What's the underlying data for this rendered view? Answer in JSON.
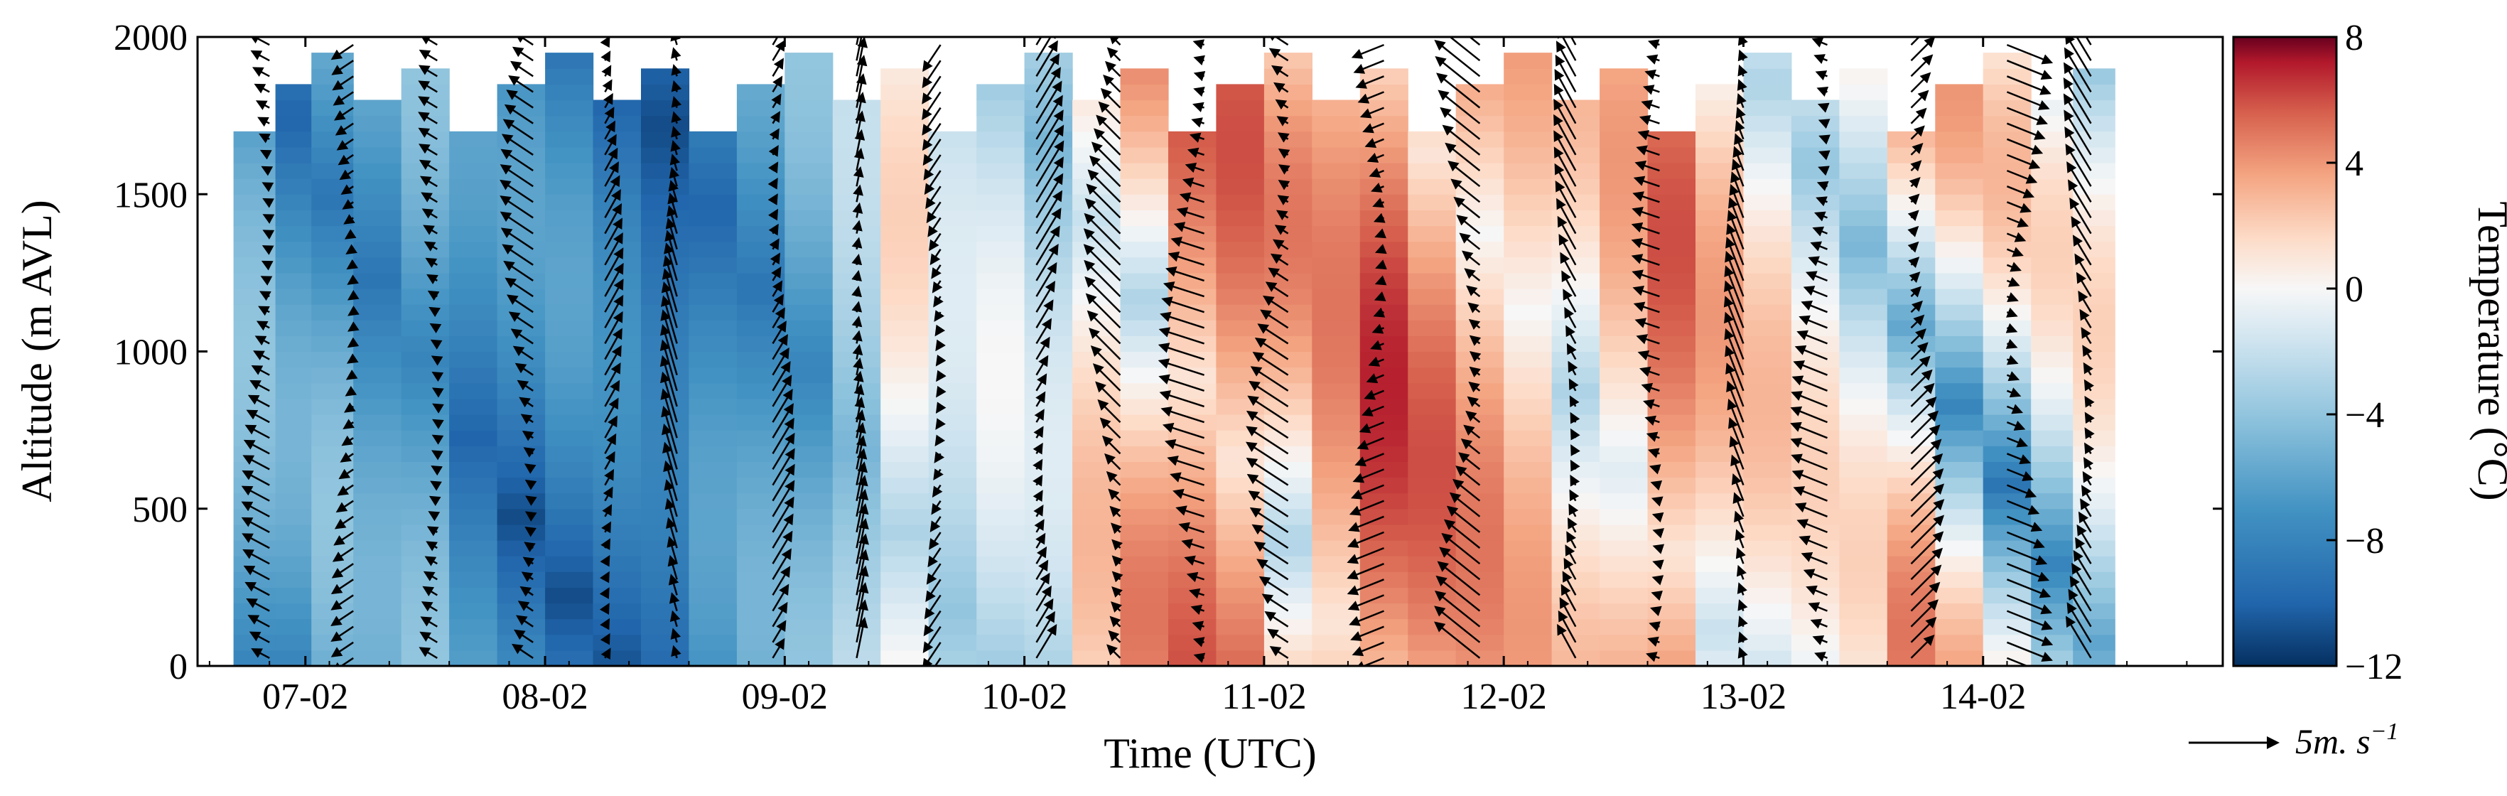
{
  "chart_data": {
    "type": "heatmap",
    "title": "",
    "xlabel": "Time (UTC)",
    "ylabel": "Altitude (m AVL)",
    "x_ticks": [
      "07-02",
      "08-02",
      "09-02",
      "10-02",
      "11-02",
      "12-02",
      "13-02",
      "14-02"
    ],
    "x_range_days": [
      6.55,
      15.0
    ],
    "y_ticks": [
      "0",
      "500",
      "1000",
      "1500",
      "2000"
    ],
    "y_range": [
      0,
      2000
    ],
    "colorbar": {
      "label": "Temperature (°C)",
      "ticks": [
        "8",
        "4",
        "0",
        "−4",
        "−8",
        "−12"
      ],
      "range": [
        -12,
        8
      ],
      "colormap": "RdBu_r"
    },
    "wind_scale_label": "5m. s",
    "wind_scale_exponent": "−1",
    "temperature_profiles": [
      {
        "day": 6.8,
        "tmin": -8,
        "tmax": -4
      },
      {
        "day": 6.95,
        "tmin": -10,
        "tmax": -5
      },
      {
        "day": 7.1,
        "tmin": -9,
        "tmax": -4
      },
      {
        "day": 7.3,
        "tmin": -9,
        "tmax": -5
      },
      {
        "day": 7.5,
        "tmin": -8,
        "tmax": -4
      },
      {
        "day": 7.7,
        "tmin": -10,
        "tmax": -6
      },
      {
        "day": 7.9,
        "tmin": -11,
        "tmax": -6
      },
      {
        "day": 8.1,
        "tmin": -11,
        "tmax": -6
      },
      {
        "day": 8.3,
        "tmin": -11,
        "tmax": -7
      },
      {
        "day": 8.5,
        "tmin": -11,
        "tmax": -8
      },
      {
        "day": 8.7,
        "tmin": -10,
        "tmax": -6
      },
      {
        "day": 8.9,
        "tmin": -9,
        "tmax": -5
      },
      {
        "day": 9.1,
        "tmin": -8,
        "tmax": -4
      },
      {
        "day": 9.3,
        "tmin": -5,
        "tmax": -2
      },
      {
        "day": 9.5,
        "tmin": -3,
        "tmax": 2
      },
      {
        "day": 9.7,
        "tmin": -4,
        "tmax": -1
      },
      {
        "day": 9.9,
        "tmin": -4,
        "tmax": 0
      },
      {
        "day": 10.1,
        "tmin": -5,
        "tmax": -1
      },
      {
        "day": 10.3,
        "tmin": -2,
        "tmax": 3
      },
      {
        "day": 10.5,
        "tmin": -3,
        "tmax": 5
      },
      {
        "day": 10.7,
        "tmin": 1,
        "tmax": 6
      },
      {
        "day": 10.9,
        "tmin": 1,
        "tmax": 6
      },
      {
        "day": 11.1,
        "tmin": -3,
        "tmax": 5
      },
      {
        "day": 11.3,
        "tmin": 1,
        "tmax": 5
      },
      {
        "day": 11.5,
        "tmin": 2,
        "tmax": 7
      },
      {
        "day": 11.7,
        "tmin": 1,
        "tmax": 6
      },
      {
        "day": 11.9,
        "tmin": 0,
        "tmax": 5
      },
      {
        "day": 12.1,
        "tmin": 0,
        "tmax": 4
      },
      {
        "day": 12.3,
        "tmin": -3,
        "tmax": 3
      },
      {
        "day": 12.5,
        "tmin": -1,
        "tmax": 4
      },
      {
        "day": 12.7,
        "tmin": 1,
        "tmax": 6
      },
      {
        "day": 12.9,
        "tmin": -2,
        "tmax": 4
      },
      {
        "day": 13.1,
        "tmin": -3,
        "tmax": 3
      },
      {
        "day": 13.3,
        "tmin": -4,
        "tmax": 2
      },
      {
        "day": 13.5,
        "tmin": -5,
        "tmax": 2
      },
      {
        "day": 13.7,
        "tmin": -6,
        "tmax": 5
      },
      {
        "day": 13.9,
        "tmin": -8,
        "tmax": 4
      },
      {
        "day": 14.1,
        "tmin": -9,
        "tmax": 3
      },
      {
        "day": 14.3,
        "tmin": -8,
        "tmax": 2
      },
      {
        "day": 14.45,
        "tmin": -6,
        "tmax": 2
      }
    ],
    "wind_profiles": [
      {
        "day": 6.85,
        "u": -1.5,
        "v": 0.8
      },
      {
        "day": 7.2,
        "u": -1.2,
        "v": -0.8
      },
      {
        "day": 7.55,
        "u": -1.0,
        "v": 0.6
      },
      {
        "day": 7.95,
        "u": -1.8,
        "v": 1.2
      },
      {
        "day": 8.25,
        "u": 1.0,
        "v": 1.8
      },
      {
        "day": 8.55,
        "u": -0.8,
        "v": 2.8
      },
      {
        "day": 8.95,
        "u": 1.2,
        "v": 2.0
      },
      {
        "day": 9.3,
        "u": 0.5,
        "v": 2.5
      },
      {
        "day": 9.65,
        "u": -1.0,
        "v": -1.5
      },
      {
        "day": 10.05,
        "u": 1.5,
        "v": 2.5
      },
      {
        "day": 10.4,
        "u": -2.0,
        "v": 2.0
      },
      {
        "day": 10.75,
        "u": -2.5,
        "v": 0.8
      },
      {
        "day": 11.1,
        "u": -2.3,
        "v": 1.5
      },
      {
        "day": 11.5,
        "u": -2.0,
        "v": -0.8
      },
      {
        "day": 11.9,
        "u": -2.5,
        "v": 2.0
      },
      {
        "day": 12.3,
        "u": -1.2,
        "v": 2.2
      },
      {
        "day": 12.65,
        "u": -1.5,
        "v": 0.5
      },
      {
        "day": 13.0,
        "u": -1.0,
        "v": 2.6
      },
      {
        "day": 13.35,
        "u": -2.0,
        "v": 0.8
      },
      {
        "day": 13.7,
        "u": 1.8,
        "v": 1.8
      },
      {
        "day": 14.1,
        "u": 2.5,
        "v": -1.0
      },
      {
        "day": 14.45,
        "u": -1.5,
        "v": 2.5
      }
    ]
  }
}
